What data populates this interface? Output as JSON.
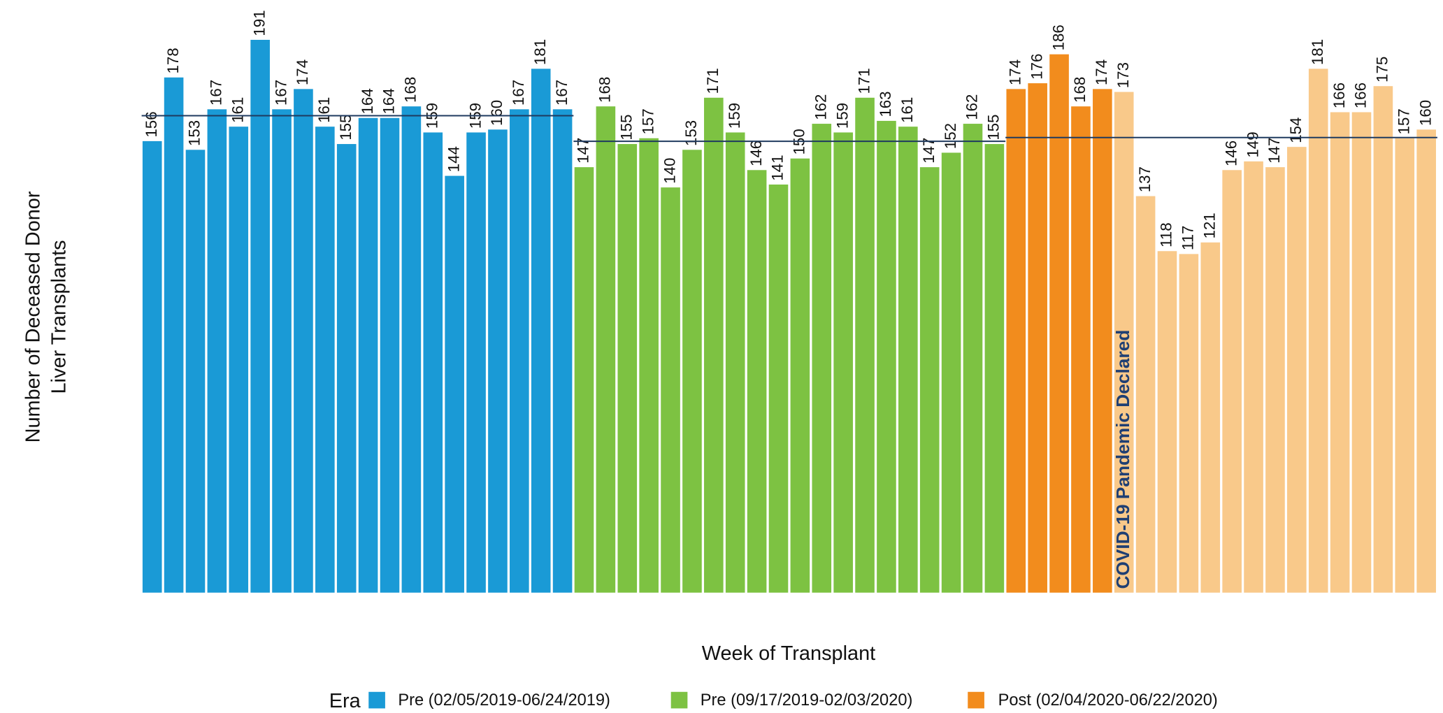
{
  "chart_data": {
    "type": "bar",
    "xlabel": "Week of Transplant",
    "ylabel": [
      "Number of Deceased Donor",
      "Liver Transplants"
    ],
    "legend_title": "Era",
    "annotation": "COVID-19 Pandemic Declared",
    "ylim": [
      0,
      200
    ],
    "series": [
      {
        "name": "Pre (02/05/2019-06/24/2019)",
        "color": "#1a9ad6",
        "mean": 164.8,
        "values": [
          156,
          178,
          153,
          167,
          161,
          191,
          167,
          174,
          161,
          155,
          164,
          164,
          168,
          159,
          144,
          159,
          160,
          167,
          181,
          167
        ]
      },
      {
        "name": "Pre (09/17/2019-02/03/2020)",
        "color": "#7dc242",
        "mean": 155.95,
        "values": [
          147,
          168,
          155,
          157,
          140,
          153,
          171,
          159,
          146,
          141,
          150,
          162,
          159,
          171,
          163,
          161,
          147,
          152,
          162,
          155
        ]
      },
      {
        "name": "Post (02/04/2020-06/22/2020)",
        "color": "#f28c1d",
        "mean": 157.25,
        "values": [
          174,
          176,
          186,
          168,
          174,
          173,
          137,
          118,
          117,
          121,
          146,
          149,
          147,
          154,
          181,
          166,
          166,
          175,
          157,
          160
        ],
        "colors": [
          "#f28c1d",
          "#f28c1d",
          "#f28c1d",
          "#f28c1d",
          "#f28c1d",
          "#f9c98a",
          "#f9c98a",
          "#f9c98a",
          "#f9c98a",
          "#f9c98a",
          "#f9c98a",
          "#f9c98a",
          "#f9c98a",
          "#f9c98a",
          "#f9c98a",
          "#f9c98a",
          "#f9c98a",
          "#f9c98a",
          "#f9c98a",
          "#f9c98a"
        ]
      }
    ]
  }
}
